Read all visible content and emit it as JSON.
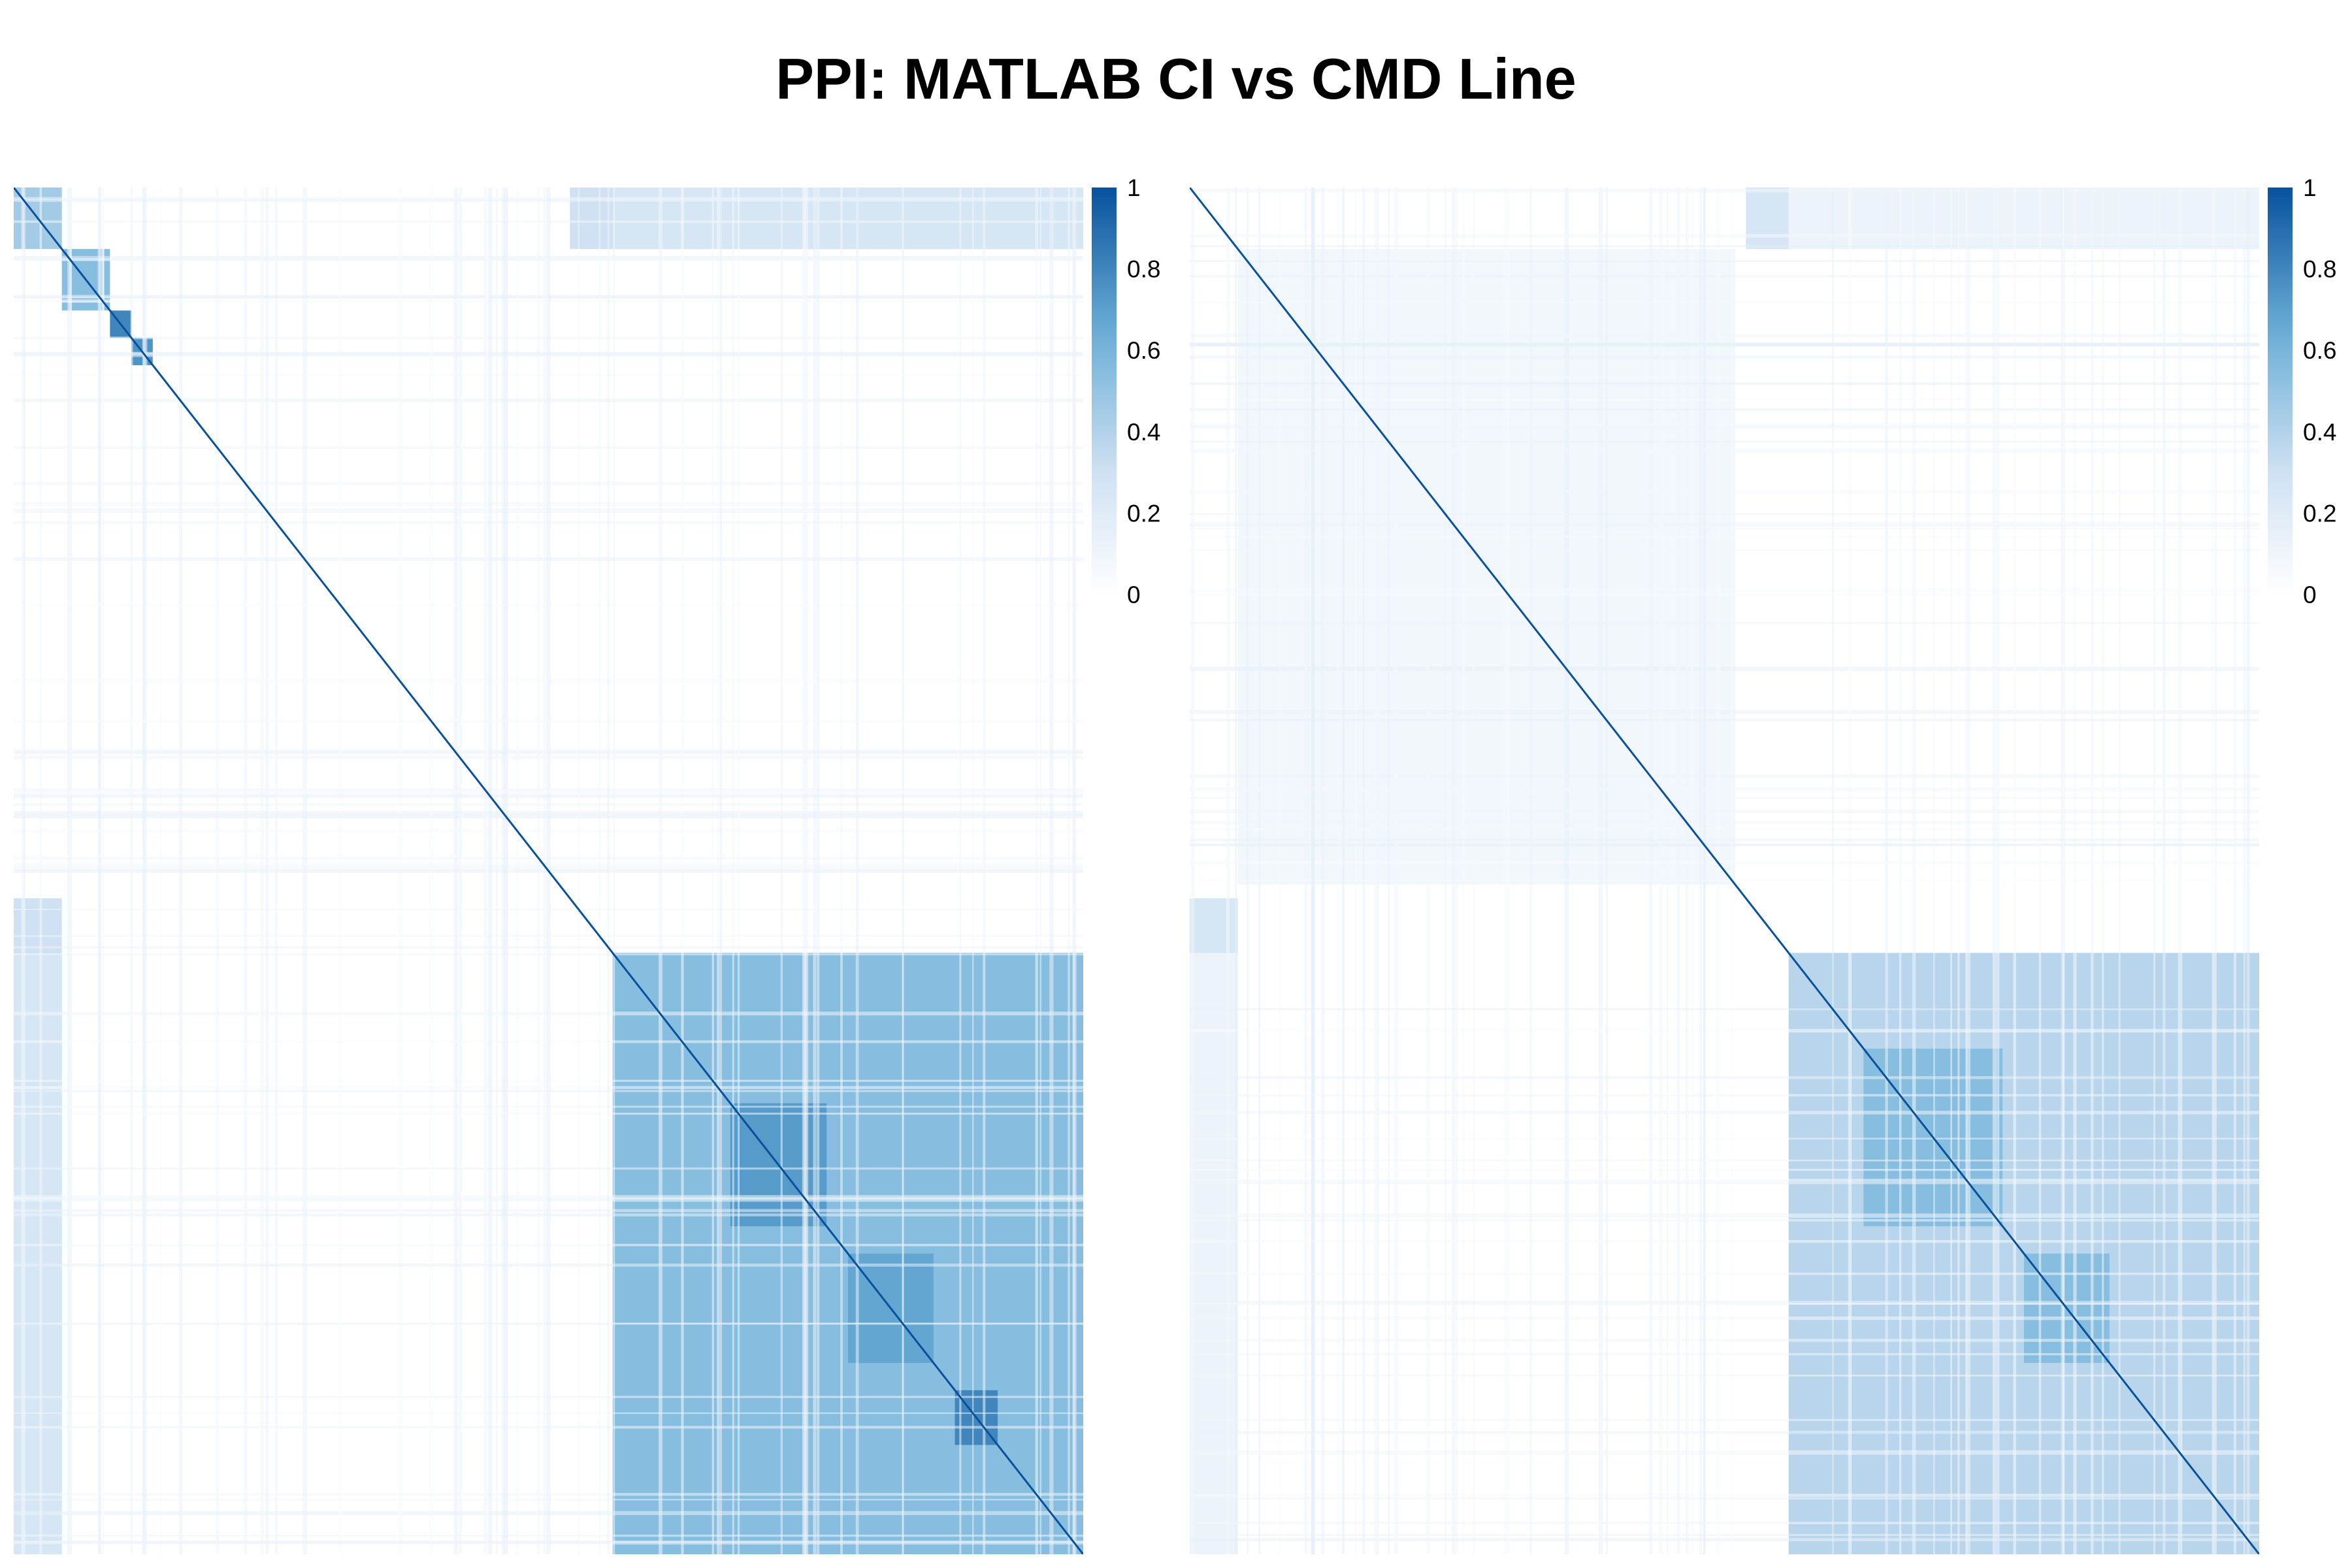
{
  "title": "PPI: MATLAB CI vs CMD Line",
  "colors": {
    "scale_low": "#ffffff",
    "scale_mid": "#cfe1f2",
    "scale_high": "#6aaed6",
    "scale_max": "#08519c"
  },
  "chart_data": [
    {
      "type": "heatmap",
      "title": "",
      "xlabel": "",
      "ylabel": "",
      "value_range": [
        0,
        1
      ],
      "colorbar_ticks": [
        "0",
        "0.2",
        "0.4",
        "0.6",
        "0.8",
        "1"
      ],
      "matrix_order": "symmetric, diagonal = 1",
      "blocks": [
        {
          "rows": [
            0,
            0.045
          ],
          "cols": [
            0,
            0.045
          ],
          "value": 0.45
        },
        {
          "rows": [
            0.045,
            0.09
          ],
          "cols": [
            0.045,
            0.09
          ],
          "value": 0.55
        },
        {
          "rows": [
            0.0,
            0.045
          ],
          "cols": [
            0.52,
            1.0
          ],
          "value": 0.3
        },
        {
          "rows": [
            0.09,
            0.11
          ],
          "cols": [
            0.09,
            0.11
          ],
          "value": 0.8
        },
        {
          "rows": [
            0.11,
            0.13
          ],
          "cols": [
            0.11,
            0.13
          ],
          "value": 0.75
        },
        {
          "rows": [
            0.56,
            1.0
          ],
          "cols": [
            0.56,
            1.0
          ],
          "value": 0.55
        },
        {
          "rows": [
            0.67,
            0.76
          ],
          "cols": [
            0.67,
            0.76
          ],
          "value": 0.72
        },
        {
          "rows": [
            0.78,
            0.86
          ],
          "cols": [
            0.78,
            0.86
          ],
          "value": 0.68
        },
        {
          "rows": [
            0.88,
            0.92
          ],
          "cols": [
            0.88,
            0.92
          ],
          "value": 0.8
        },
        {
          "rows": [
            0.56,
            1.0
          ],
          "cols": [
            0.0,
            0.045
          ],
          "value": 0.25
        }
      ]
    },
    {
      "type": "heatmap",
      "title": "",
      "xlabel": "",
      "ylabel": "",
      "value_range": [
        0,
        1
      ],
      "colorbar_ticks": [
        "0",
        "0.2",
        "0.4",
        "0.6",
        "0.8",
        "1"
      ],
      "matrix_order": "symmetric, diagonal = 1",
      "blocks": [
        {
          "rows": [
            0.045,
            0.51
          ],
          "cols": [
            0.045,
            0.51
          ],
          "value": 0.08
        },
        {
          "rows": [
            0.0,
            0.045
          ],
          "cols": [
            0.52,
            1.0
          ],
          "value": 0.25
        },
        {
          "rows": [
            0.56,
            1.0
          ],
          "cols": [
            0.56,
            1.0
          ],
          "value": 0.38
        },
        {
          "rows": [
            0.63,
            0.76
          ],
          "cols": [
            0.63,
            0.76
          ],
          "value": 0.55
        },
        {
          "rows": [
            0.78,
            0.86
          ],
          "cols": [
            0.78,
            0.86
          ],
          "value": 0.55
        },
        {
          "rows": [
            0.56,
            1.0
          ],
          "cols": [
            0.0,
            0.045
          ],
          "value": 0.12
        }
      ]
    }
  ]
}
